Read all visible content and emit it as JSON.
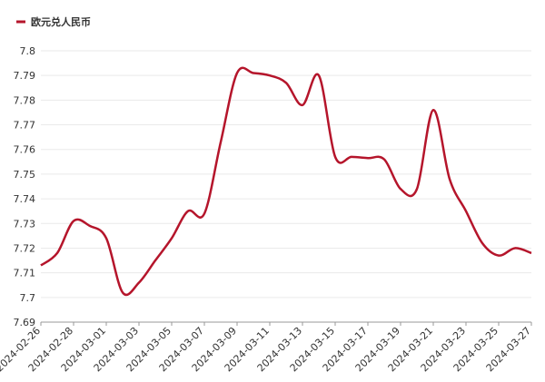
{
  "chart_data": {
    "type": "line",
    "categories": [
      "2024-02-26",
      null,
      "2024-02-28",
      null,
      "2024-03-01",
      null,
      "2024-03-03",
      null,
      "2024-03-05",
      null,
      "2024-03-07",
      null,
      "2024-03-09",
      null,
      "2024-03-11",
      null,
      "2024-03-13",
      null,
      "2024-03-15",
      null,
      "2024-03-17",
      null,
      "2024-03-19",
      null,
      "2024-03-21",
      null,
      "2024-03-23",
      null,
      "2024-03-25",
      null,
      "2024-03-27"
    ],
    "series": [
      {
        "name": "欧元兑人民币",
        "color": "#b5152b",
        "values": [
          7.713,
          7.718,
          7.731,
          7.729,
          7.724,
          7.702,
          7.706,
          7.715,
          7.724,
          7.735,
          7.734,
          7.763,
          7.791,
          7.791,
          7.79,
          7.787,
          7.778,
          7.79,
          7.757,
          7.757,
          7.7565,
          7.756,
          7.744,
          7.744,
          7.776,
          7.748,
          7.735,
          7.722,
          7.717,
          7.72,
          7.718
        ]
      }
    ],
    "ylim": [
      7.69,
      7.8
    ],
    "yticks": [
      7.69,
      7.7,
      7.71,
      7.72,
      7.73,
      7.74,
      7.75,
      7.76,
      7.77,
      7.78,
      7.79,
      7.8
    ],
    "grid": true,
    "legend": "top-left"
  }
}
